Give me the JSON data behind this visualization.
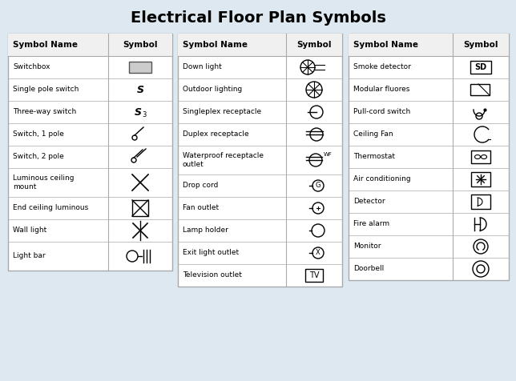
{
  "title": "Electrical Floor Plan Symbols",
  "bg_color": "#dde8f0",
  "table_bg": "#ffffff",
  "border_color": "#aaaaaa",
  "title_fontsize": 14,
  "col1": {
    "headers": [
      "Symbol Name",
      "Symbol"
    ],
    "rows": [
      "Switchbox",
      "Single pole switch",
      "Three-way switch",
      "Switch, 1 pole",
      "Switch, 2 pole",
      "Luminous ceiling\nmount",
      "End ceiling luminous",
      "Wall light",
      "Light bar"
    ]
  },
  "col2": {
    "headers": [
      "Symbol Name",
      "Symbol"
    ],
    "rows": [
      "Down light",
      "Outdoor lighting",
      "Singleplex receptacle",
      "Duplex receptacle",
      "Waterproof receptacle\noutlet",
      "Drop cord",
      "Fan outlet",
      "Lamp holder",
      "Exit light outlet",
      "Television outlet"
    ]
  },
  "col3": {
    "headers": [
      "Symbol Name",
      "Symbol"
    ],
    "rows": [
      "Smoke detector",
      "Modular fluores",
      "Pull-cord switch",
      "Ceiling Fan",
      "Thermostat",
      "Air conditioning",
      "Detector",
      "Fire alarm",
      "Monitor",
      "Doorbell"
    ]
  }
}
